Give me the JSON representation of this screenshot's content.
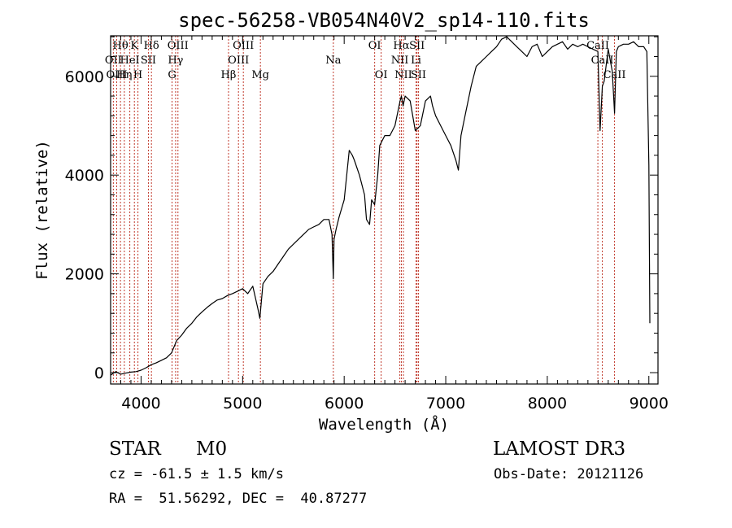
{
  "chart_data": {
    "type": "line",
    "title": "spec-56258-VB054N40V2_sp14-110.fits",
    "xlabel": "Wavelength (Å)",
    "ylabel": "Flux (relative)",
    "xlim": [
      3700,
      9090
    ],
    "ylim": [
      -230,
      6820
    ],
    "xticks": [
      4000,
      5000,
      6000,
      7000,
      8000,
      9000
    ],
    "yticks": [
      0,
      2000,
      4000,
      6000
    ],
    "series": [
      {
        "name": "flux",
        "x": [
          3700,
          3750,
          3800,
          3850,
          3900,
          3950,
          4000,
          4050,
          4100,
          4150,
          4200,
          4250,
          4300,
          4330,
          4350,
          4400,
          4450,
          4500,
          4550,
          4600,
          4650,
          4700,
          4750,
          4800,
          4850,
          4900,
          4950,
          5000,
          5050,
          5100,
          5150,
          5170,
          5200,
          5250,
          5300,
          5350,
          5400,
          5450,
          5500,
          5550,
          5600,
          5650,
          5700,
          5750,
          5800,
          5850,
          5880,
          5893,
          5900,
          5920,
          5950,
          6000,
          6050,
          6080,
          6100,
          6150,
          6200,
          6220,
          6250,
          6270,
          6300,
          6330,
          6350,
          6400,
          6450,
          6500,
          6550,
          6563,
          6580,
          6600,
          6650,
          6700,
          6750,
          6800,
          6850,
          6870,
          6900,
          6950,
          7000,
          7050,
          7100,
          7125,
          7150,
          7200,
          7250,
          7300,
          7350,
          7400,
          7450,
          7500,
          7550,
          7600,
          7650,
          7700,
          7750,
          7800,
          7850,
          7900,
          7950,
          8000,
          8050,
          8100,
          8150,
          8200,
          8250,
          8300,
          8350,
          8400,
          8450,
          8498,
          8520,
          8542,
          8560,
          8600,
          8640,
          8662,
          8680,
          8700,
          8750,
          8800,
          8850,
          8900,
          8950,
          8980,
          9000,
          9010
        ],
        "y": [
          -50,
          20,
          -30,
          -10,
          10,
          20,
          50,
          100,
          160,
          200,
          250,
          300,
          400,
          550,
          650,
          760,
          900,
          1000,
          1130,
          1230,
          1320,
          1400,
          1470,
          1500,
          1560,
          1600,
          1650,
          1700,
          1600,
          1750,
          1300,
          1100,
          1800,
          1950,
          2050,
          2200,
          2350,
          2500,
          2600,
          2700,
          2800,
          2900,
          2950,
          3000,
          3100,
          3100,
          2800,
          1900,
          2700,
          2900,
          3150,
          3500,
          4500,
          4400,
          4300,
          4000,
          3600,
          3100,
          3000,
          3500,
          3400,
          4000,
          4600,
          4800,
          4800,
          5000,
          5500,
          5600,
          5400,
          5600,
          5500,
          4900,
          5000,
          5500,
          5600,
          5400,
          5200,
          5000,
          4800,
          4600,
          4300,
          4100,
          4800,
          5300,
          5800,
          6200,
          6300,
          6400,
          6500,
          6600,
          6750,
          6800,
          6700,
          6600,
          6500,
          6400,
          6600,
          6650,
          6400,
          6500,
          6600,
          6650,
          6700,
          6550,
          6650,
          6600,
          6650,
          6600,
          6550,
          6500,
          4900,
          5800,
          5900,
          6550,
          6100,
          5250,
          6500,
          6600,
          6650,
          6650,
          6700,
          6600,
          6600,
          6500,
          4200,
          1000
        ]
      }
    ],
    "spectral_lines": [
      {
        "label": "Hθ",
        "wl": 3797,
        "row": 0
      },
      {
        "label": "OII",
        "wl": 3727,
        "row": 1
      },
      {
        "label": "OIII",
        "wl": 3760,
        "row": 2
      },
      {
        "label": "K",
        "wl": 3934,
        "row": 0
      },
      {
        "label": "Hη",
        "wl": 3835,
        "row": 2
      },
      {
        "label": "HeI",
        "wl": 3889,
        "row": 1
      },
      {
        "label": "SII",
        "wl": 4072,
        "row": 1
      },
      {
        "label": "H",
        "wl": 3969,
        "row": 2
      },
      {
        "label": "Hδ",
        "wl": 4102,
        "row": 0
      },
      {
        "label": "OIII",
        "wl": 4363,
        "row": 0
      },
      {
        "label": "Hγ",
        "wl": 4340,
        "row": 1
      },
      {
        "label": "G",
        "wl": 4305,
        "row": 2
      },
      {
        "label": "Hβ",
        "wl": 4861,
        "row": 2
      },
      {
        "label": "OIII",
        "wl": 4959,
        "row": 1
      },
      {
        "label": "OIII",
        "wl": 5007,
        "row": 0
      },
      {
        "label": "Mg",
        "wl": 5175,
        "row": 2
      },
      {
        "label": "Na",
        "wl": 5893,
        "row": 1
      },
      {
        "label": "OI",
        "wl": 6300,
        "row": 0
      },
      {
        "label": "OI",
        "wl": 6364,
        "row": 2
      },
      {
        "label": "NII",
        "wl": 6548,
        "row": 1
      },
      {
        "label": "Hα",
        "wl": 6563,
        "row": 0
      },
      {
        "label": "NII",
        "wl": 6583,
        "row": 2
      },
      {
        "label": "SII",
        "wl": 6717,
        "row": 0
      },
      {
        "label": "Li",
        "wl": 6708,
        "row": 1
      },
      {
        "label": "SII",
        "wl": 6731,
        "row": 2
      },
      {
        "label": "CaII",
        "wl": 8498,
        "row": 0
      },
      {
        "label": "CaII",
        "wl": 8542,
        "row": 1
      },
      {
        "label": "CaII",
        "wl": 8662,
        "row": 2
      }
    ],
    "line_color": "#c0392b"
  },
  "info": {
    "object_class": "STAR",
    "subclass": "M0",
    "survey": "LAMOST DR3",
    "redshift": "cz = -61.5 ± 1.5 km/s",
    "obs_date": "Obs-Date: 20121126",
    "coords": "RA =  51.56292, DEC =  40.87277"
  }
}
